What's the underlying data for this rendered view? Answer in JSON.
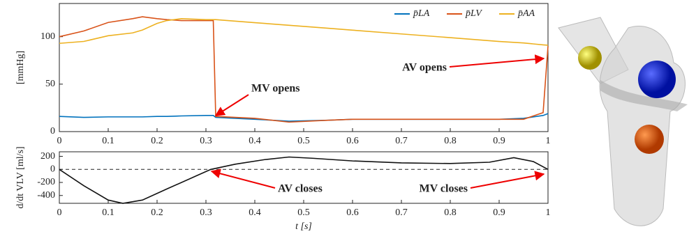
{
  "chart_data": [
    {
      "type": "line",
      "y_label": "[mmHg]",
      "x": [
        0,
        0.05,
        0.1,
        0.15,
        0.17,
        0.2,
        0.22,
        0.25,
        0.3,
        0.315,
        0.32,
        0.4,
        0.47,
        0.55,
        0.6,
        0.7,
        0.8,
        0.9,
        0.95,
        0.99,
        1.0
      ],
      "series": [
        {
          "name": "p̄LA",
          "color": "#0072bd",
          "values": [
            16,
            15,
            15.5,
            15.5,
            15.5,
            16,
            16,
            16.5,
            17,
            17,
            15,
            13,
            11,
            12,
            13,
            13,
            13,
            13,
            14,
            17,
            19
          ]
        },
        {
          "name": "p̄LV",
          "color": "#d95319",
          "values": [
            100,
            106,
            115,
            119,
            121,
            119,
            118,
            117,
            117,
            117,
            16,
            14,
            10,
            12,
            13,
            13,
            13,
            13,
            13,
            20,
            90
          ]
        },
        {
          "name": "p̄AA",
          "color": "#edb120",
          "values": [
            93,
            95,
            101,
            104,
            107,
            114,
            117,
            119,
            118,
            118,
            118,
            114.8,
            112,
            108.9,
            106.9,
            102.9,
            99,
            95,
            93.4,
            91.4,
            91
          ]
        }
      ],
      "xlim": [
        0,
        1
      ],
      "xticks": [
        0,
        0.1,
        0.2,
        0.3,
        0.4,
        0.5,
        0.6,
        0.7,
        0.8,
        0.9,
        1
      ],
      "ylim": [
        0,
        135
      ],
      "yticks": [
        0,
        50,
        100
      ],
      "legend": "top-right",
      "annotations": [
        {
          "text": "MV opens"
        },
        {
          "text": "AV opens"
        }
      ]
    },
    {
      "type": "line",
      "y_label": "d/dt VLV [ml/s]",
      "x_label": "t [s]",
      "x": [
        0,
        0.05,
        0.1,
        0.13,
        0.17,
        0.22,
        0.28,
        0.31,
        0.36,
        0.42,
        0.47,
        0.52,
        0.6,
        0.7,
        0.8,
        0.88,
        0.93,
        0.97,
        1.0
      ],
      "series": [
        {
          "color": "#111111",
          "values": [
            0,
            -250,
            -470,
            -520,
            -470,
            -300,
            -100,
            0,
            80,
            150,
            190,
            170,
            130,
            100,
            90,
            110,
            180,
            120,
            0
          ]
        }
      ],
      "xlim": [
        0,
        1
      ],
      "xticks": [
        0,
        0.1,
        0.2,
        0.3,
        0.4,
        0.5,
        0.6,
        0.7,
        0.8,
        0.9,
        1
      ],
      "ylim": [
        -520,
        270
      ],
      "yticks": [
        -400,
        -200,
        0,
        200
      ],
      "reference_line": {
        "y": 0,
        "style": "dashed"
      },
      "annotations": [
        {
          "text": "AV closes"
        },
        {
          "text": "MV closes"
        }
      ]
    }
  ]
}
